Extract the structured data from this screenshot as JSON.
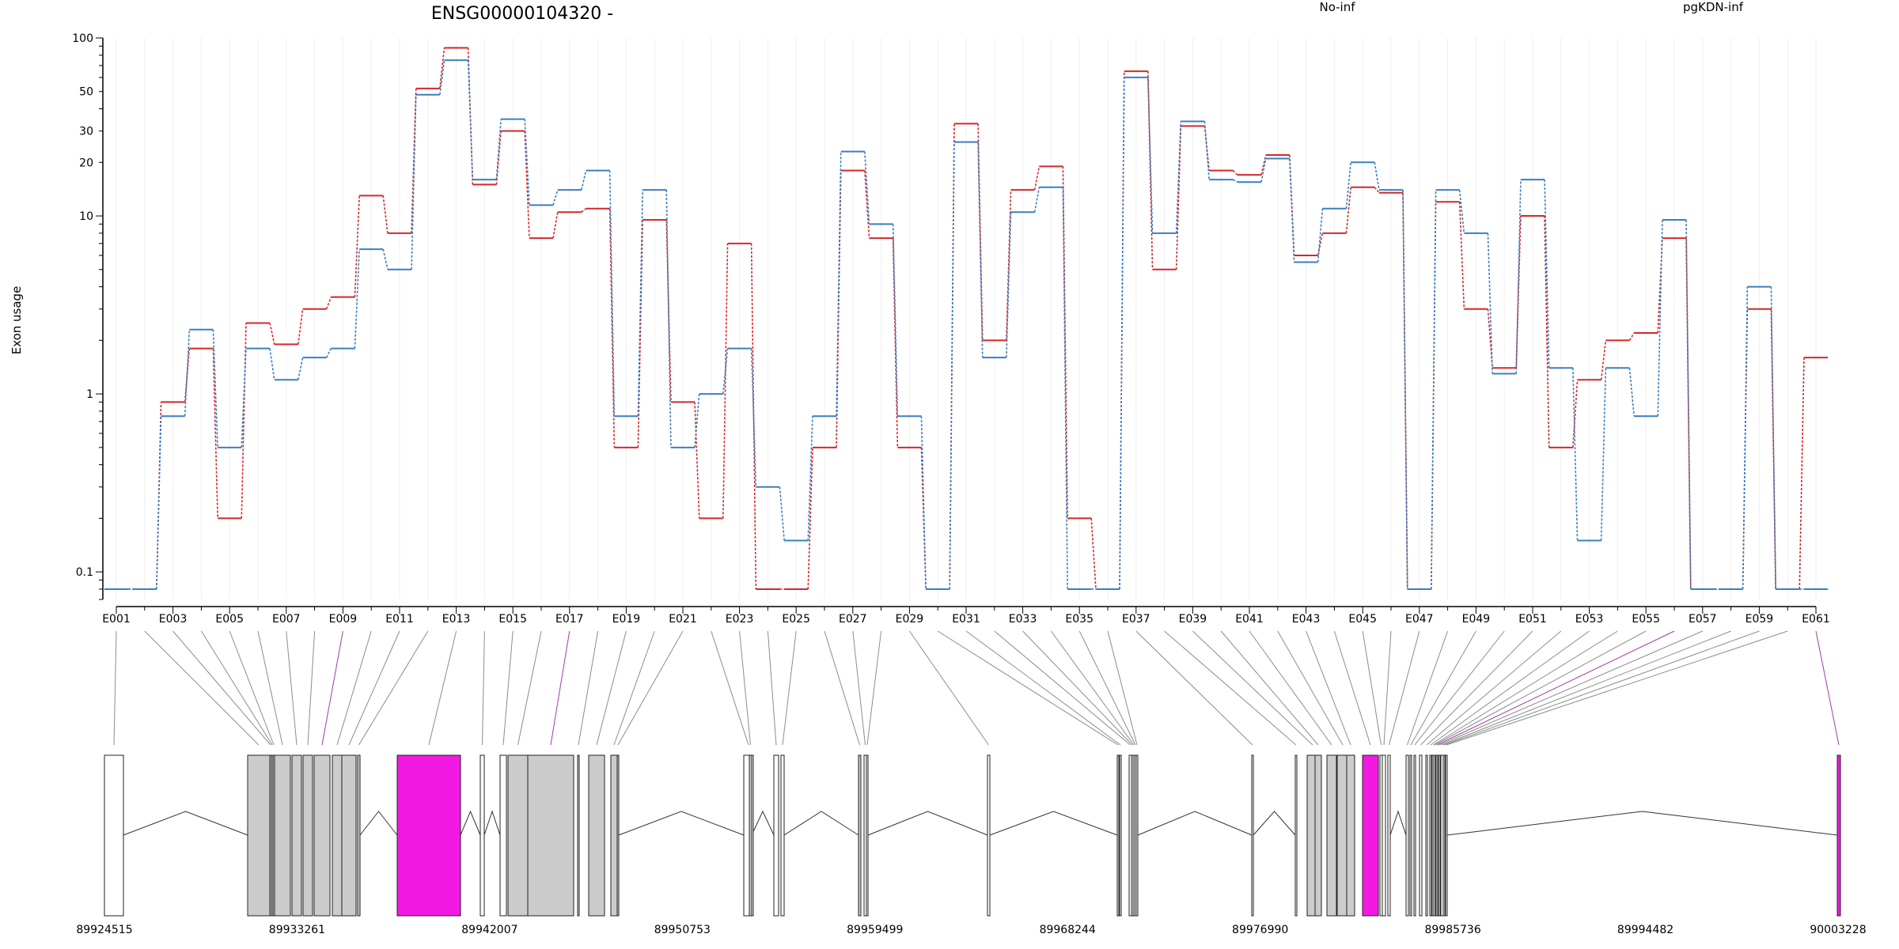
{
  "chart_data": {
    "type": "line",
    "title": "ENSG00000104320 -",
    "ylabel": "Exon usage",
    "xlabel": "",
    "yscale": "log",
    "ylim": [
      0.07,
      100
    ],
    "yticks": [
      0.1,
      1,
      10,
      20,
      30,
      50,
      100
    ],
    "ytick_labels": [
      "0.1",
      "1",
      "10",
      "20",
      "30",
      "50",
      "100"
    ],
    "grid": "vertical",
    "legend_position": "top",
    "colors": {
      "No-inf": "#d62728",
      "pgKDN-inf": "#3a7fc1",
      "exon_plain": "#ffffff",
      "exon_grey": "#cccccc",
      "exon_highlight": "#f21ae3",
      "connector": "#8c8c8c",
      "connector_highlight": "#a03ca8"
    },
    "categories": [
      "E001",
      "E002",
      "E003",
      "E004",
      "E005",
      "E006",
      "E007",
      "E008",
      "E009",
      "E010",
      "E011",
      "E012",
      "E013",
      "E014",
      "E015",
      "E016",
      "E017",
      "E018",
      "E019",
      "E020",
      "E021",
      "E022",
      "E023",
      "E024",
      "E025",
      "E026",
      "E027",
      "E028",
      "E029",
      "E030",
      "E031",
      "E032",
      "E033",
      "E034",
      "E035",
      "E036",
      "E037",
      "E038",
      "E039",
      "E040",
      "E041",
      "E042",
      "E043",
      "E044",
      "E045",
      "E046",
      "E047",
      "E048",
      "E049",
      "E050",
      "E051",
      "E052",
      "E053",
      "E054",
      "E055",
      "E056",
      "E057",
      "E058",
      "E059",
      "E060",
      "E061"
    ],
    "xtick_labels": [
      "E001",
      "E003",
      "E005",
      "E007",
      "E009",
      "E011",
      "E013",
      "E015",
      "E017",
      "E019",
      "E021",
      "E023",
      "E025",
      "E027",
      "E029",
      "E031",
      "E033",
      "E035",
      "E037",
      "E039",
      "E041",
      "E043",
      "E045",
      "E047",
      "E049",
      "E051",
      "E053",
      "E055",
      "E057",
      "E059",
      "E061"
    ],
    "series": [
      {
        "name": "No-inf",
        "values": [
          0.08,
          0.08,
          0.9,
          1.8,
          0.2,
          2.5,
          1.9,
          3,
          3.5,
          13,
          8,
          52,
          88,
          15,
          30,
          7.5,
          10.5,
          11,
          0.5,
          9.5,
          0.9,
          0.2,
          7,
          0.08,
          0.08,
          0.5,
          18,
          7.5,
          0.5,
          0.08,
          33,
          2,
          14,
          19,
          0.2,
          0.08,
          65,
          5,
          32,
          18,
          17,
          22,
          6,
          8,
          14.5,
          13.5,
          0.08,
          12,
          3,
          1.4,
          10,
          0.5,
          1.2,
          2,
          2.2,
          7.5,
          0.08,
          0.08,
          3,
          0.08,
          1.6
        ]
      },
      {
        "name": "pgKDN-inf",
        "values": [
          0.08,
          0.08,
          0.75,
          2.3,
          0.5,
          1.8,
          1.2,
          1.6,
          1.8,
          6.5,
          5,
          48,
          75,
          16,
          35,
          11.5,
          14,
          18,
          0.75,
          14,
          0.5,
          1,
          1.8,
          0.3,
          0.15,
          0.75,
          23,
          9,
          0.75,
          0.08,
          26,
          1.6,
          10.5,
          14.5,
          0.08,
          0.08,
          60,
          8,
          34,
          16,
          15.5,
          21,
          5.5,
          11,
          20,
          14,
          0.08,
          14,
          8,
          1.3,
          16,
          1.4,
          0.15,
          1.4,
          0.75,
          9.5,
          0.08,
          0.08,
          4,
          0.08,
          0.08
        ]
      }
    ],
    "gene_model": {
      "coordinate_ticks": [
        "89924515",
        "89933261",
        "89942007",
        "89950753",
        "89959499",
        "89968244",
        "89976990",
        "89985736",
        "89994482",
        "90003228"
      ],
      "exon_fills": [
        "plain",
        "grey",
        "grey",
        "grey",
        "grey",
        "grey",
        "grey",
        "grey",
        "grey",
        "grey",
        "grey",
        "grey",
        "highlight",
        "plain",
        "plain",
        "grey",
        "grey",
        "grey",
        "grey",
        "grey",
        "grey",
        "plain",
        "grey",
        "plain",
        "plain",
        "grey",
        "plain",
        "plain",
        "plain",
        "plain",
        "plain",
        "plain",
        "plain",
        "plain",
        "plain",
        "plain",
        "plain",
        "plain",
        "grey",
        "grey",
        "grey",
        "grey",
        "grey",
        "highlight",
        "plain",
        "plain",
        "plain",
        "plain",
        "plain",
        "plain",
        "plain",
        "plain",
        "plain",
        "plain",
        "plain",
        "plain",
        "plain",
        "plain",
        "plain",
        "plain",
        "highlight"
      ],
      "highlighted_connectors": [
        "E009",
        "E017",
        "E056",
        "E061"
      ]
    }
  },
  "legend": [
    "No-inf",
    "pgKDN-inf"
  ]
}
